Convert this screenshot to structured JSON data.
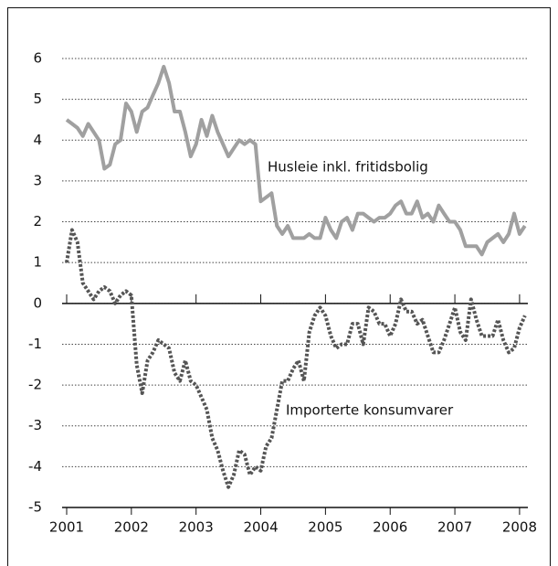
{
  "chart_data": {
    "type": "line",
    "x": [
      2001.0,
      2001.083,
      2001.167,
      2001.25,
      2001.333,
      2001.417,
      2001.5,
      2001.583,
      2001.667,
      2001.75,
      2001.833,
      2001.917,
      2002.0,
      2002.083,
      2002.167,
      2002.25,
      2002.333,
      2002.417,
      2002.5,
      2002.583,
      2002.667,
      2002.75,
      2002.833,
      2002.917,
      2003.0,
      2003.083,
      2003.167,
      2003.25,
      2003.333,
      2003.417,
      2003.5,
      2003.583,
      2003.667,
      2003.75,
      2003.833,
      2003.917,
      2004.0,
      2004.083,
      2004.167,
      2004.25,
      2004.333,
      2004.417,
      2004.5,
      2004.583,
      2004.667,
      2004.75,
      2004.833,
      2004.917,
      2005.0,
      2005.083,
      2005.167,
      2005.25,
      2005.333,
      2005.417,
      2005.5,
      2005.583,
      2005.667,
      2005.75,
      2005.833,
      2005.917,
      2006.0,
      2006.083,
      2006.167,
      2006.25,
      2006.333,
      2006.417,
      2006.5,
      2006.583,
      2006.667,
      2006.75,
      2006.833,
      2006.917,
      2007.0,
      2007.083,
      2007.167,
      2007.25,
      2007.333,
      2007.417,
      2007.5,
      2007.583,
      2007.667,
      2007.75,
      2007.833,
      2007.917,
      2008.0,
      2008.083
    ],
    "series": [
      {
        "name": "Husleie inkl. fritidsbolig",
        "color": "#a0a0a0",
        "style": "solid",
        "values": [
          4.5,
          4.4,
          4.3,
          4.1,
          4.4,
          4.2,
          4.0,
          3.3,
          3.4,
          3.9,
          4.0,
          4.9,
          4.7,
          4.2,
          4.7,
          4.8,
          5.1,
          5.4,
          5.8,
          5.4,
          4.7,
          4.7,
          4.2,
          3.6,
          3.9,
          4.5,
          4.1,
          4.6,
          4.2,
          3.9,
          3.6,
          3.8,
          4.0,
          3.9,
          4.0,
          3.9,
          2.5,
          2.6,
          2.7,
          1.9,
          1.7,
          1.9,
          1.6,
          1.6,
          1.6,
          1.7,
          1.6,
          1.6,
          2.1,
          1.8,
          1.6,
          2.0,
          2.1,
          1.8,
          2.2,
          2.2,
          2.1,
          2.0,
          2.1,
          2.1,
          2.2,
          2.4,
          2.5,
          2.2,
          2.2,
          2.5,
          2.1,
          2.2,
          2.0,
          2.4,
          2.2,
          2.0,
          2.0,
          1.8,
          1.4,
          1.4,
          1.4,
          1.2,
          1.5,
          1.6,
          1.7,
          1.5,
          1.7,
          2.2,
          1.7,
          1.9
        ]
      },
      {
        "name": "Importerte konsumvarer",
        "color": "#555555",
        "style": "dotted",
        "values": [
          1.0,
          1.8,
          1.5,
          0.5,
          0.3,
          0.1,
          0.3,
          0.4,
          0.3,
          0.0,
          0.2,
          0.3,
          0.2,
          -1.5,
          -2.2,
          -1.4,
          -1.2,
          -0.9,
          -1.0,
          -1.1,
          -1.7,
          -1.9,
          -1.4,
          -1.9,
          -2.0,
          -2.3,
          -2.6,
          -3.3,
          -3.6,
          -4.1,
          -4.5,
          -4.2,
          -3.6,
          -3.7,
          -4.2,
          -4.0,
          -4.1,
          -3.5,
          -3.3,
          -2.6,
          -1.9,
          -1.9,
          -1.6,
          -1.4,
          -1.9,
          -0.7,
          -0.3,
          -0.1,
          -0.3,
          -0.8,
          -1.1,
          -1.0,
          -1.0,
          -0.5,
          -0.5,
          -1.0,
          -0.1,
          -0.2,
          -0.5,
          -0.5,
          -0.8,
          -0.5,
          0.1,
          -0.2,
          -0.2,
          -0.5,
          -0.4,
          -0.8,
          -1.2,
          -1.2,
          -0.9,
          -0.5,
          -0.1,
          -0.7,
          -0.9,
          0.1,
          -0.4,
          -0.8,
          -0.8,
          -0.8,
          -0.4,
          -0.9,
          -1.2,
          -1.1,
          -0.6,
          -0.3
        ]
      }
    ],
    "xlim": [
      2001,
      2008.1
    ],
    "xticks": [
      2001,
      2002,
      2003,
      2004,
      2005,
      2006,
      2007,
      2008
    ],
    "ylim": [
      -5,
      6
    ],
    "yticks": [
      -5,
      -4,
      -3,
      -2,
      -1,
      0,
      1,
      2,
      3,
      4,
      5,
      6
    ],
    "grid": true
  }
}
